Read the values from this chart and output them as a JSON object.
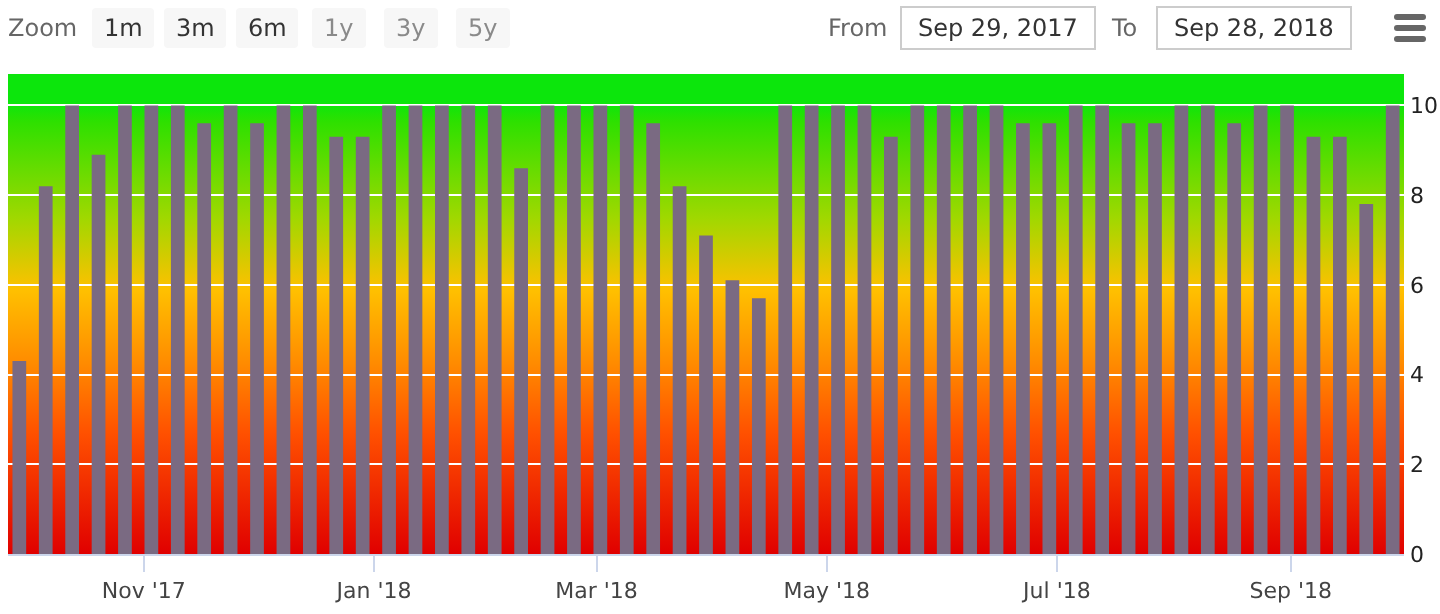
{
  "chart_data": {
    "type": "bar",
    "x": [
      "2017-09-29",
      "2017-10-06",
      "2017-10-13",
      "2017-10-20",
      "2017-10-27",
      "2017-11-03",
      "2017-11-10",
      "2017-11-17",
      "2017-11-24",
      "2017-12-01",
      "2017-12-08",
      "2017-12-15",
      "2017-12-22",
      "2017-12-29",
      "2018-01-05",
      "2018-01-12",
      "2018-01-19",
      "2018-01-26",
      "2018-02-02",
      "2018-02-09",
      "2018-02-16",
      "2018-02-23",
      "2018-03-02",
      "2018-03-09",
      "2018-03-16",
      "2018-03-23",
      "2018-03-30",
      "2018-04-06",
      "2018-04-13",
      "2018-04-20",
      "2018-04-27",
      "2018-05-04",
      "2018-05-11",
      "2018-05-18",
      "2018-05-25",
      "2018-06-01",
      "2018-06-08",
      "2018-06-15",
      "2018-06-22",
      "2018-06-29",
      "2018-07-06",
      "2018-07-13",
      "2018-07-20",
      "2018-07-27",
      "2018-08-03",
      "2018-08-10",
      "2018-08-17",
      "2018-08-24",
      "2018-08-31",
      "2018-09-07",
      "2018-09-14",
      "2018-09-21",
      "2018-09-28"
    ],
    "values": [
      4.3,
      8.2,
      10,
      8.9,
      10,
      10,
      10,
      9.6,
      10,
      9.6,
      10,
      10,
      9.3,
      9.3,
      10,
      10,
      10,
      10,
      10,
      8.6,
      10,
      10,
      10,
      10,
      9.6,
      8.2,
      7.1,
      6.1,
      5.7,
      10,
      10,
      10,
      10,
      9.3,
      10,
      10,
      10,
      10,
      9.6,
      9.6,
      10,
      10,
      9.6,
      9.6,
      10,
      10,
      9.6,
      10,
      10,
      9.3,
      9.3,
      7.8,
      10
    ],
    "color": "#7a6a82",
    "xlim": [
      "2017-09-26",
      "2018-10-01"
    ],
    "xticks": [
      {
        "value": "2017-11-01",
        "label": "Nov '17"
      },
      {
        "value": "2018-01-01",
        "label": "Jan '18"
      },
      {
        "value": "2018-03-01",
        "label": "Mar '18"
      },
      {
        "value": "2018-05-01",
        "label": "May '18"
      },
      {
        "value": "2018-07-01",
        "label": "Jul '18"
      },
      {
        "value": "2018-09-01",
        "label": "Sep '18"
      }
    ],
    "ylim": [
      0,
      10.7
    ],
    "yticks": [
      0,
      2,
      4,
      6,
      8,
      10
    ],
    "grid": "y",
    "annotations": [
      "Zoom",
      "1m",
      "3m",
      "6m",
      "1y",
      "3y",
      "5y",
      "From",
      "Sep 29, 2017",
      "To",
      "Sep 28, 2018"
    ]
  }
}
